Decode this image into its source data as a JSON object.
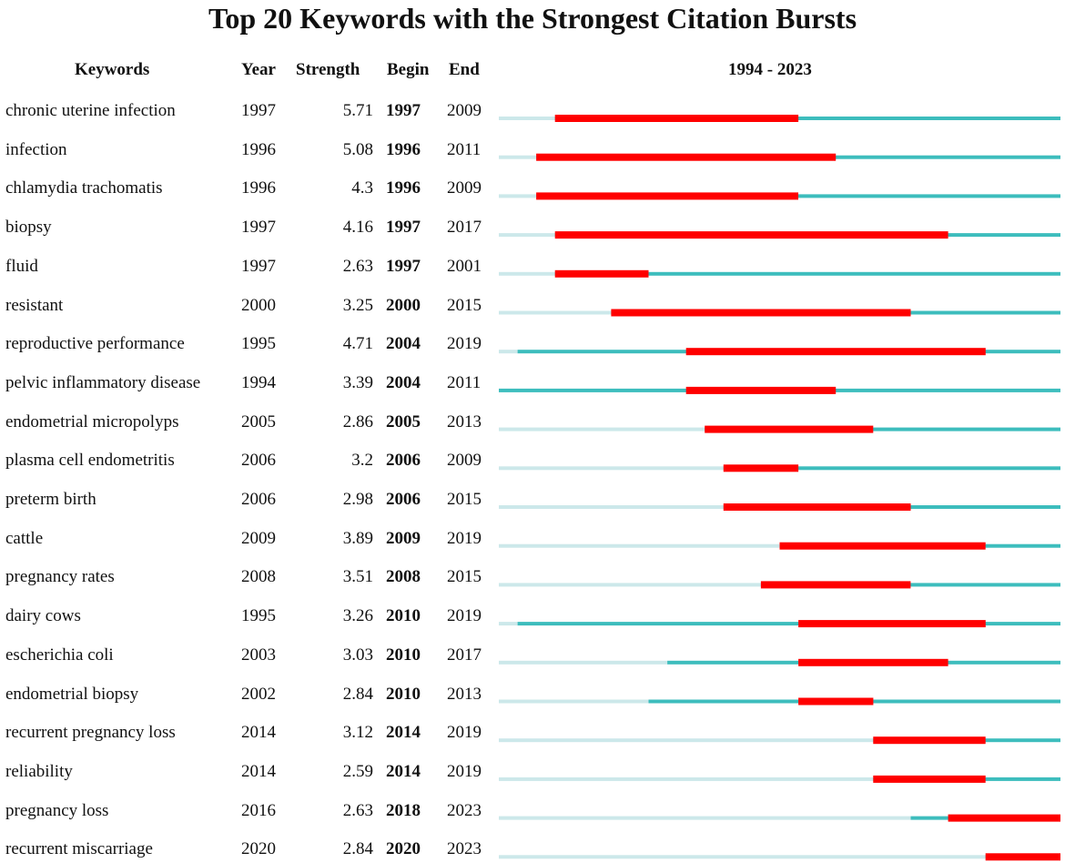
{
  "chart_data": {
    "type": "bar",
    "title": "Top 20 Keywords with the Strongest Citation Bursts",
    "headers": {
      "keywords": "Keywords",
      "year": "Year",
      "strength": "Strength",
      "begin": "Begin",
      "end": "End",
      "range": "1994 - 2023"
    },
    "x_range": [
      1994,
      2023
    ],
    "colors": {
      "burst": "#ff0000",
      "active": "#3dbdbd",
      "inactive": "#cce8ea"
    },
    "rows": [
      {
        "keyword": "chronic uterine infection",
        "year": "1997",
        "strength": "5.71",
        "begin": "1997",
        "end": "2009"
      },
      {
        "keyword": "infection",
        "year": "1996",
        "strength": "5.08",
        "begin": "1996",
        "end": "2011"
      },
      {
        "keyword": "chlamydia trachomatis",
        "year": "1996",
        "strength": "4.3",
        "begin": "1996",
        "end": "2009"
      },
      {
        "keyword": "biopsy",
        "year": "1997",
        "strength": "4.16",
        "begin": "1997",
        "end": "2017"
      },
      {
        "keyword": "fluid",
        "year": "1997",
        "strength": "2.63",
        "begin": "1997",
        "end": "2001"
      },
      {
        "keyword": "resistant",
        "year": "2000",
        "strength": "3.25",
        "begin": "2000",
        "end": "2015"
      },
      {
        "keyword": "reproductive performance",
        "year": "1995",
        "strength": "4.71",
        "begin": "2004",
        "end": "2019"
      },
      {
        "keyword": "pelvic inflammatory disease",
        "year": "1994",
        "strength": "3.39",
        "begin": "2004",
        "end": "2011"
      },
      {
        "keyword": "endometrial micropolyps",
        "year": "2005",
        "strength": "2.86",
        "begin": "2005",
        "end": "2013"
      },
      {
        "keyword": "plasma cell endometritis",
        "year": "2006",
        "strength": "3.2",
        "begin": "2006",
        "end": "2009"
      },
      {
        "keyword": "preterm birth",
        "year": "2006",
        "strength": "2.98",
        "begin": "2006",
        "end": "2015"
      },
      {
        "keyword": "cattle",
        "year": "2009",
        "strength": "3.89",
        "begin": "2009",
        "end": "2019"
      },
      {
        "keyword": "pregnancy rates",
        "year": "2008",
        "strength": "3.51",
        "begin": "2008",
        "end": "2015"
      },
      {
        "keyword": "dairy cows",
        "year": "1995",
        "strength": "3.26",
        "begin": "2010",
        "end": "2019"
      },
      {
        "keyword": "escherichia coli",
        "year": "2003",
        "strength": "3.03",
        "begin": "2010",
        "end": "2017"
      },
      {
        "keyword": "endometrial biopsy",
        "year": "2002",
        "strength": "2.84",
        "begin": "2010",
        "end": "2013"
      },
      {
        "keyword": "recurrent pregnancy loss",
        "year": "2014",
        "strength": "3.12",
        "begin": "2014",
        "end": "2019"
      },
      {
        "keyword": "reliability",
        "year": "2014",
        "strength": "2.59",
        "begin": "2014",
        "end": "2019"
      },
      {
        "keyword": "pregnancy loss",
        "year": "2016",
        "strength": "2.63",
        "begin": "2018",
        "end": "2023"
      },
      {
        "keyword": "recurrent miscarriage",
        "year": "2020",
        "strength": "2.84",
        "begin": "2020",
        "end": "2023"
      }
    ]
  }
}
